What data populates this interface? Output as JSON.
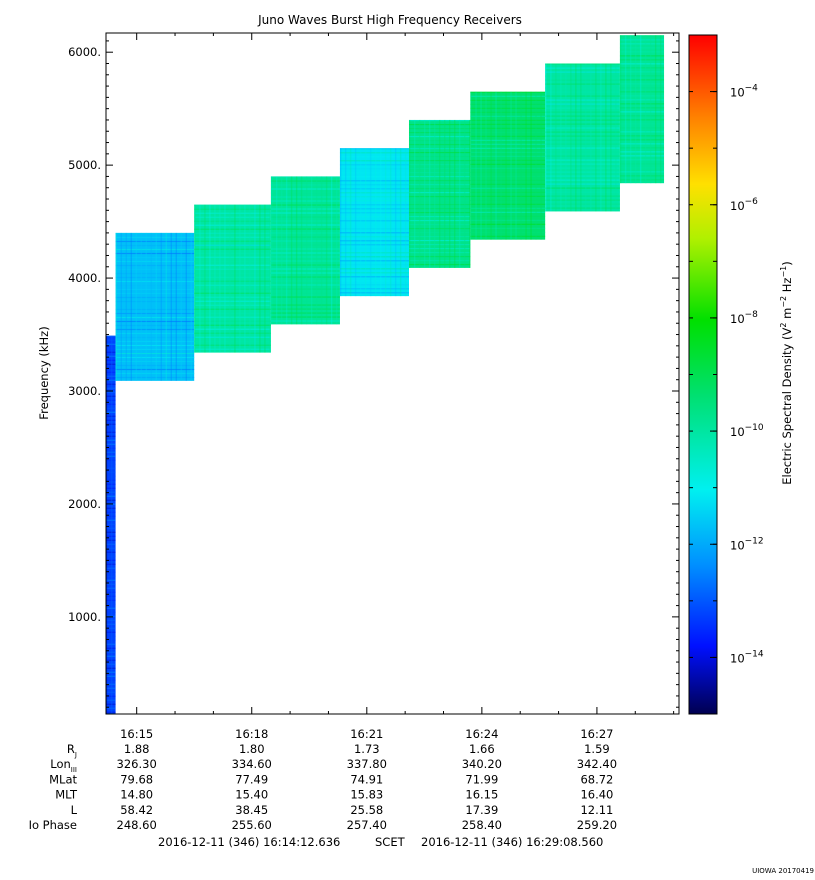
{
  "chart_data": {
    "type": "heatmap",
    "title": "Juno Waves Burst High Frequency Receivers",
    "ylabel": "Frequency (kHz)",
    "ylim": [
      140,
      6170
    ],
    "yticks": [
      1000,
      2000,
      3000,
      4000,
      5000,
      6000
    ],
    "ytick_labels": [
      "1000.",
      "2000.",
      "3000.",
      "4000.",
      "5000.",
      "6000."
    ],
    "time_range_min": [
      14.2,
      29.14
    ],
    "xticks": [
      15,
      18,
      21,
      24,
      27
    ],
    "xtick_labels": [
      "16:15",
      "16:18",
      "16:21",
      "16:24",
      "16:27"
    ],
    "colorbar": {
      "label": "Electric Spectral Density (V² m⁻² Hz⁻¹)",
      "label_parts": {
        "main": "Electric Spectral Density (V",
        "sup1": "2",
        "mid1": " m",
        "sup2": "−2",
        "mid2": " Hz",
        "sup3": "−1",
        "end": ")"
      },
      "log_range": [
        -15,
        -3
      ],
      "tick_exponents": [
        -14,
        -12,
        -10,
        -8,
        -6,
        -4
      ],
      "tick_base": "10"
    },
    "segments": [
      {
        "t0": 14.2,
        "t1": 14.45,
        "f0": 140,
        "f1": 3490,
        "level": -13.6
      },
      {
        "t0": 14.45,
        "t1": 16.5,
        "f0": 3090,
        "f1": 4400,
        "level": -12.5
      },
      {
        "t0": 16.5,
        "t1": 18.5,
        "f0": 3340,
        "f1": 4650,
        "level": -11.4
      },
      {
        "t0": 18.5,
        "t1": 20.3,
        "f0": 3590,
        "f1": 4900,
        "level": -11.3
      },
      {
        "t0": 20.3,
        "t1": 22.1,
        "f0": 3840,
        "f1": 5150,
        "level": -12.1
      },
      {
        "t0": 22.1,
        "t1": 23.7,
        "f0": 4090,
        "f1": 5400,
        "level": -11.2
      },
      {
        "t0": 23.7,
        "t1": 25.65,
        "f0": 4340,
        "f1": 5650,
        "level": -11.0
      },
      {
        "t0": 25.65,
        "t1": 27.6,
        "f0": 4590,
        "f1": 5900,
        "level": -11.4
      },
      {
        "t0": 27.6,
        "t1": 28.75,
        "f0": 4840,
        "f1": 6150,
        "level": -11.3
      }
    ],
    "ephemeris": {
      "row_labels": [
        {
          "main": "R",
          "sub": "J"
        },
        {
          "main": "Lon",
          "sub": "III"
        },
        {
          "main": "MLat",
          "sub": ""
        },
        {
          "main": "MLT",
          "sub": ""
        },
        {
          "main": "L",
          "sub": ""
        },
        {
          "main": "Io Phase",
          "sub": ""
        }
      ],
      "rows": [
        [
          "1.88",
          "1.80",
          "1.73",
          "1.66",
          "1.59"
        ],
        [
          "326.30",
          "334.60",
          "337.80",
          "340.20",
          "342.40"
        ],
        [
          "79.68",
          "77.49",
          "74.91",
          "71.99",
          "68.72"
        ],
        [
          "14.80",
          "15.40",
          "15.83",
          "16.15",
          "16.40"
        ],
        [
          "58.42",
          "38.45",
          "25.58",
          "17.39",
          "12.11"
        ],
        [
          "248.60",
          "255.60",
          "257.40",
          "258.40",
          "259.20"
        ]
      ]
    },
    "time_span": {
      "start": "2016-12-11 (346) 16:14:12.636",
      "frame": "SCET",
      "end": "2016-12-11 (346) 16:29:08.560"
    },
    "footer": "UIOWA 20170419"
  }
}
